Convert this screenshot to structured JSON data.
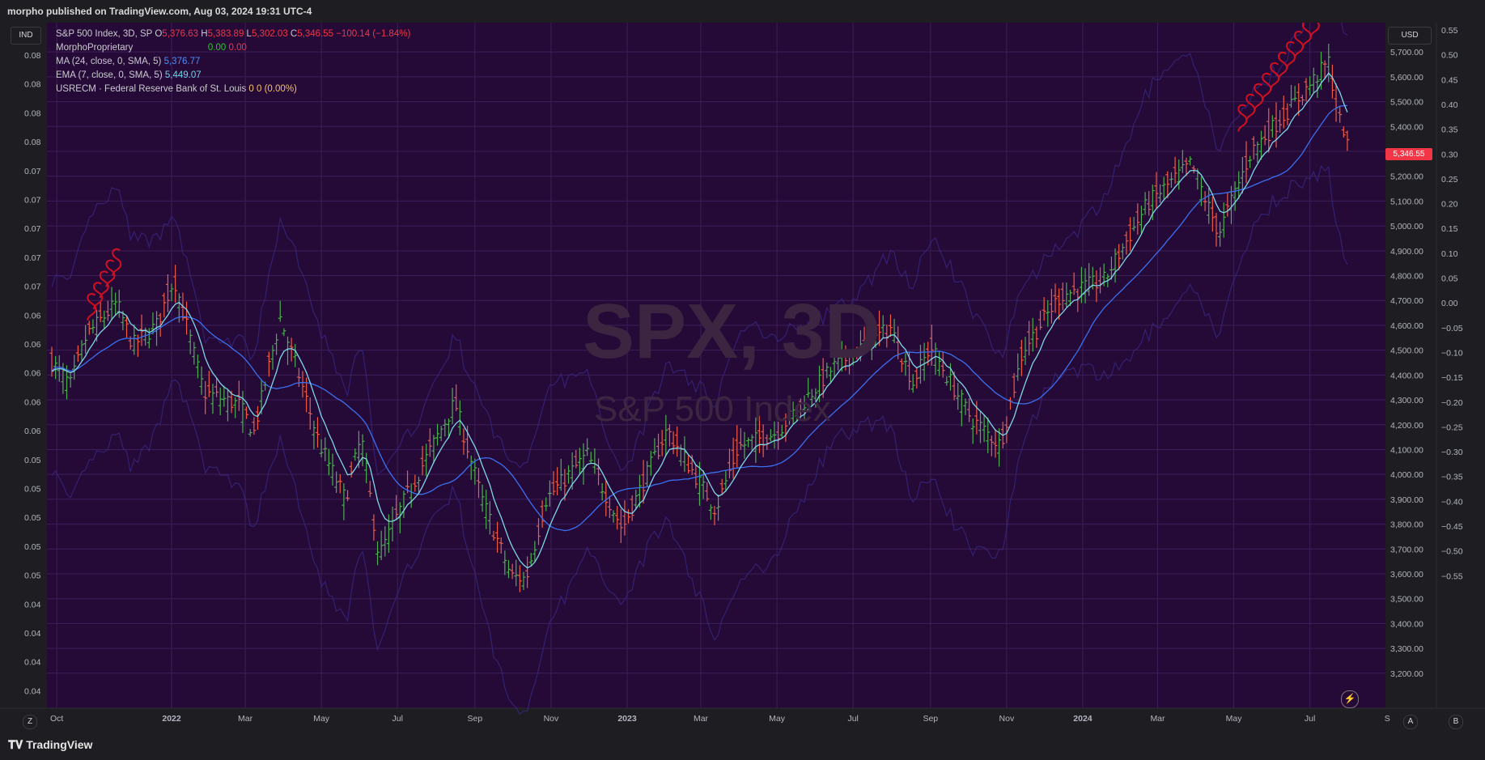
{
  "header": {
    "publish_line": "morpho published on TradingView.com, Aug 03, 2024 19:31 UTC-4"
  },
  "watermark": {
    "symbol": "SPX, 3D",
    "name": "S&P 500 Index"
  },
  "legend": {
    "title": "S&P 500 Index, 3D, SP",
    "o_label": "O",
    "o_value": "5,376.63",
    "h_label": "H",
    "h_value": "5,383.89",
    "l_label": "L",
    "l_value": "5,302.03",
    "c_label": "C",
    "c_value": "5,346.55",
    "change": "−100.14 (−1.84%)",
    "ind1_name": "MorphoProprietary",
    "ind1_v1": "0.00",
    "ind1_v2": "0.00",
    "ma_name": "MA (24, close, 0, SMA, 5)",
    "ma_value": "5,376.77",
    "ema_name": "EMA (7, close, 0, SMA, 5)",
    "ema_value": "5,449.07",
    "usrecm_name": "USRECM · Federal Reserve Bank of St. Louis",
    "usrecm_v1": "0",
    "usrecm_v2": "0 (0.00%)"
  },
  "buttons": {
    "left_scale": "IND",
    "right_scale": "USD",
    "bottom_z": "Z",
    "bottom_a": "A",
    "bottom_b": "B"
  },
  "last_price": "5,346.55",
  "footer": {
    "brand": "TradingView"
  },
  "colors": {
    "background": "#250a37",
    "up": "#4caf50",
    "down": "#f05b45",
    "ma": "#3a70f0",
    "ema": "#7fd6e8",
    "band": "#3a2a8a",
    "signal": "#d01020"
  },
  "chart_data": {
    "type": "ohlc",
    "timeframe": "3D",
    "x_axis_labels": [
      "Oct",
      "2022",
      "Mar",
      "May",
      "Jul",
      "Sep",
      "Nov",
      "2023",
      "Mar",
      "May",
      "Jul",
      "Sep",
      "Nov",
      "2024",
      "Mar",
      "May",
      "Jul",
      "S"
    ],
    "x_axis_dates": [
      "2021-10-01",
      "2022-01-01",
      "2022-03-01",
      "2022-05-01",
      "2022-07-01",
      "2022-09-01",
      "2022-11-01",
      "2023-01-01",
      "2023-03-01",
      "2023-05-01",
      "2023-07-01",
      "2023-09-01",
      "2023-11-01",
      "2024-01-01",
      "2024-03-01",
      "2024-05-01",
      "2024-07-01",
      "2024-09-01"
    ],
    "right_axis_price": {
      "ticks": [
        "5,700.00",
        "5,600.00",
        "5,500.00",
        "5,400.00",
        "5,300.00",
        "5,200.00",
        "5,100.00",
        "5,000.00",
        "4,900.00",
        "4,800.00",
        "4,700.00",
        "4,600.00",
        "4,500.00",
        "4,400.00",
        "4,300.00",
        "4,200.00",
        "4,100.00",
        "4,000.00",
        "3,900.00",
        "3,800.00",
        "3,700.00",
        "3,600.00",
        "3,500.00",
        "3,400.00",
        "3,300.00",
        "3,200.00"
      ],
      "range": [
        3130,
        5830
      ]
    },
    "right_axis_indicator": {
      "ticks": [
        "0.55",
        "0.50",
        "0.45",
        "0.40",
        "0.35",
        "0.30",
        "0.25",
        "0.20",
        "0.15",
        "0.10",
        "0.05",
        "0.00",
        "−0.05",
        "−0.10",
        "−0.15",
        "−0.20",
        "−0.25",
        "−0.30",
        "−0.35",
        "−0.40",
        "−0.45",
        "−0.50",
        "−0.55"
      ]
    },
    "left_axis": {
      "ticks": [
        "0.08",
        "0.08",
        "0.08",
        "0.08",
        "0.07",
        "0.07",
        "0.07",
        "0.07",
        "0.07",
        "0.06",
        "0.06",
        "0.06",
        "0.06",
        "0.06",
        "0.05",
        "0.05",
        "0.05",
        "0.05",
        "0.05",
        "0.04",
        "0.04",
        "0.04",
        "0.04"
      ]
    },
    "close_anchors": [
      [
        "2021-09-27",
        4450
      ],
      [
        "2021-10-12",
        4360
      ],
      [
        "2021-10-25",
        4560
      ],
      [
        "2021-11-18",
        4690
      ],
      [
        "2021-12-01",
        4520
      ],
      [
        "2021-12-20",
        4600
      ],
      [
        "2022-01-03",
        4790
      ],
      [
        "2022-01-27",
        4330
      ],
      [
        "2022-02-24",
        4280
      ],
      [
        "2022-03-08",
        4170
      ],
      [
        "2022-03-29",
        4630
      ],
      [
        "2022-04-13",
        4400
      ],
      [
        "2022-04-29",
        4130
      ],
      [
        "2022-05-20",
        3900
      ],
      [
        "2022-06-02",
        4150
      ],
      [
        "2022-06-16",
        3670
      ],
      [
        "2022-07-07",
        3900
      ],
      [
        "2022-08-16",
        4290
      ],
      [
        "2022-09-06",
        3910
      ],
      [
        "2022-09-30",
        3590
      ],
      [
        "2022-10-12",
        3580
      ],
      [
        "2022-10-28",
        3900
      ],
      [
        "2022-11-30",
        4080
      ],
      [
        "2022-12-28",
        3780
      ],
      [
        "2023-02-02",
        4180
      ],
      [
        "2023-03-13",
        3860
      ],
      [
        "2023-03-31",
        4110
      ],
      [
        "2023-05-01",
        4170
      ],
      [
        "2023-06-15",
        4430
      ],
      [
        "2023-07-31",
        4590
      ],
      [
        "2023-08-18",
        4370
      ],
      [
        "2023-09-01",
        4515
      ],
      [
        "2023-10-03",
        4230
      ],
      [
        "2023-10-27",
        4117
      ],
      [
        "2023-11-14",
        4500
      ],
      [
        "2023-12-14",
        4720
      ],
      [
        "2024-01-18",
        4780
      ],
      [
        "2024-02-22",
        5090
      ],
      [
        "2024-03-28",
        5250
      ],
      [
        "2024-04-19",
        4970
      ],
      [
        "2024-05-15",
        5300
      ],
      [
        "2024-06-18",
        5490
      ],
      [
        "2024-07-16",
        5660
      ],
      [
        "2024-07-24",
        5430
      ],
      [
        "2024-08-02",
        5346.55
      ]
    ],
    "series": [
      {
        "name": "S&P 500 Index",
        "role": "ohlc"
      },
      {
        "name": "MA (24, close, 0, SMA, 5)",
        "last": 5376.77
      },
      {
        "name": "EMA (7, close, 0, SMA, 5)",
        "last": 5449.07
      }
    ],
    "signals": [
      {
        "date_from": "2021-10-29",
        "date_to": "2021-11-18",
        "price_from": 4620,
        "price_to": 4800,
        "count": 5
      },
      {
        "date_from": "2024-05-08",
        "date_to": "2024-07-05",
        "price_from": 5380,
        "price_to": 5760,
        "count": 10
      }
    ],
    "grid": true
  }
}
